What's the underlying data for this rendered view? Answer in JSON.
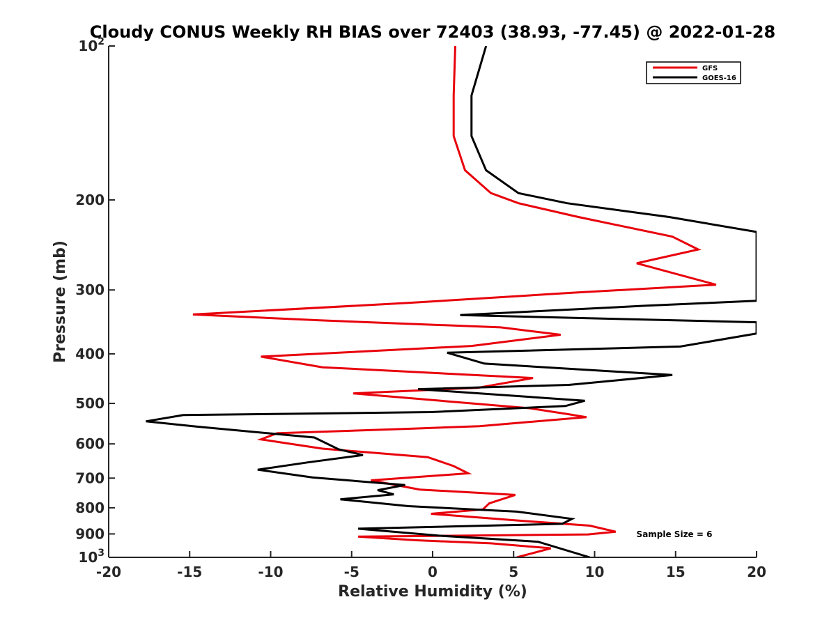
{
  "chart_data": {
    "type": "line",
    "title": "Cloudy CONUS Weekly RH BIAS over 72403 (38.93, -77.45) @ 2022-01-28",
    "xlabel": "Relative Humidity (%)",
    "ylabel": "Pressure (mb)",
    "xlim": [
      -20,
      20
    ],
    "ylim": [
      100,
      1000
    ],
    "y_scale": "log",
    "y_reversed": true,
    "xticks": [
      -20,
      -15,
      -10,
      -5,
      0,
      5,
      10,
      15,
      20
    ],
    "yticks": [
      {
        "value": 100,
        "base": "10",
        "exp": "2"
      },
      {
        "value": 200,
        "label": "200"
      },
      {
        "value": 300,
        "label": "300"
      },
      {
        "value": 400,
        "label": "400"
      },
      {
        "value": 500,
        "label": "500"
      },
      {
        "value": 600,
        "label": "600"
      },
      {
        "value": 700,
        "label": "700"
      },
      {
        "value": 800,
        "label": "800"
      },
      {
        "value": 900,
        "label": "900"
      },
      {
        "value": 1000,
        "base": "10",
        "exp": "3"
      }
    ],
    "grid": false,
    "legend_position": "top-right",
    "annotation": "Sample Size = 6",
    "series": [
      {
        "name": "GFS",
        "color": "#e8000b",
        "points": [
          [
            1.4,
            100
          ],
          [
            1.3,
            125
          ],
          [
            1.3,
            150
          ],
          [
            2.0,
            175
          ],
          [
            3.6,
            194
          ],
          [
            5.3,
            203
          ],
          [
            9.0,
            216
          ],
          [
            14.8,
            236
          ],
          [
            16.4,
            250
          ],
          [
            12.6,
            266
          ],
          [
            17.5,
            293
          ],
          [
            8.5,
            304
          ],
          [
            -1.5,
            318
          ],
          [
            -14.8,
            335
          ],
          [
            -7,
            344
          ],
          [
            4.2,
            355
          ],
          [
            7.9,
            367
          ],
          [
            2.4,
            386
          ],
          [
            -10.6,
            405
          ],
          [
            -6.8,
            425
          ],
          [
            6.2,
            446
          ],
          [
            2.8,
            466
          ],
          [
            -4.9,
            478
          ],
          [
            6.0,
            511
          ],
          [
            8.4,
            525
          ],
          [
            9.5,
            532
          ],
          [
            2.9,
            554
          ],
          [
            -1.2,
            560
          ],
          [
            -9.6,
            572
          ],
          [
            -10.6,
            588
          ],
          [
            -6.8,
            613
          ],
          [
            -0.3,
            637
          ],
          [
            1.3,
            663
          ],
          [
            2.2,
            685
          ],
          [
            -3.8,
            707
          ],
          [
            -0.8,
            737
          ],
          [
            5.1,
            755
          ],
          [
            3.5,
            784
          ],
          [
            3.1,
            806
          ],
          [
            -0.1,
            822
          ],
          [
            5.6,
            849
          ],
          [
            9.7,
            867
          ],
          [
            11.3,
            891
          ],
          [
            9.6,
            902
          ],
          [
            -4.6,
            911
          ],
          [
            -1,
            926
          ],
          [
            3.6,
            939
          ],
          [
            7.3,
            960
          ],
          [
            5.2,
            1000
          ]
        ]
      },
      {
        "name": "GOES-16",
        "color": "#000000",
        "points": [
          [
            3.3,
            100
          ],
          [
            2.4,
            125
          ],
          [
            2.4,
            150
          ],
          [
            3.3,
            175
          ],
          [
            5.3,
            194
          ],
          [
            8.3,
            203
          ],
          [
            14.6,
            216
          ],
          [
            20,
            231
          ],
          [
            20,
            315
          ],
          [
            13.2,
            322
          ],
          [
            1.7,
            336
          ],
          [
            20,
            347
          ],
          [
            20,
            365
          ],
          [
            15.3,
            387
          ],
          [
            0.9,
            398
          ],
          [
            3.2,
            418
          ],
          [
            14.8,
            440
          ],
          [
            8.4,
            460
          ],
          [
            -0.9,
            469
          ],
          [
            9.4,
            494
          ],
          [
            8.2,
            506
          ],
          [
            -0.1,
            520
          ],
          [
            -15.4,
            527
          ],
          [
            -17.7,
            542
          ],
          [
            -14.6,
            555
          ],
          [
            -7.3,
            583
          ],
          [
            -5.8,
            615
          ],
          [
            -4.3,
            631
          ],
          [
            -7.7,
            652
          ],
          [
            -10.8,
            674
          ],
          [
            -7.4,
            698
          ],
          [
            -1.7,
            722
          ],
          [
            -3.4,
            739
          ],
          [
            -2.4,
            753
          ],
          [
            -5.7,
            770
          ],
          [
            -1.5,
            794
          ],
          [
            5.2,
            814
          ],
          [
            8.6,
            841
          ],
          [
            8.0,
            860
          ],
          [
            -4.6,
            879
          ],
          [
            0.4,
            907
          ],
          [
            6.5,
            932
          ],
          [
            9.7,
            1000
          ]
        ]
      }
    ]
  }
}
